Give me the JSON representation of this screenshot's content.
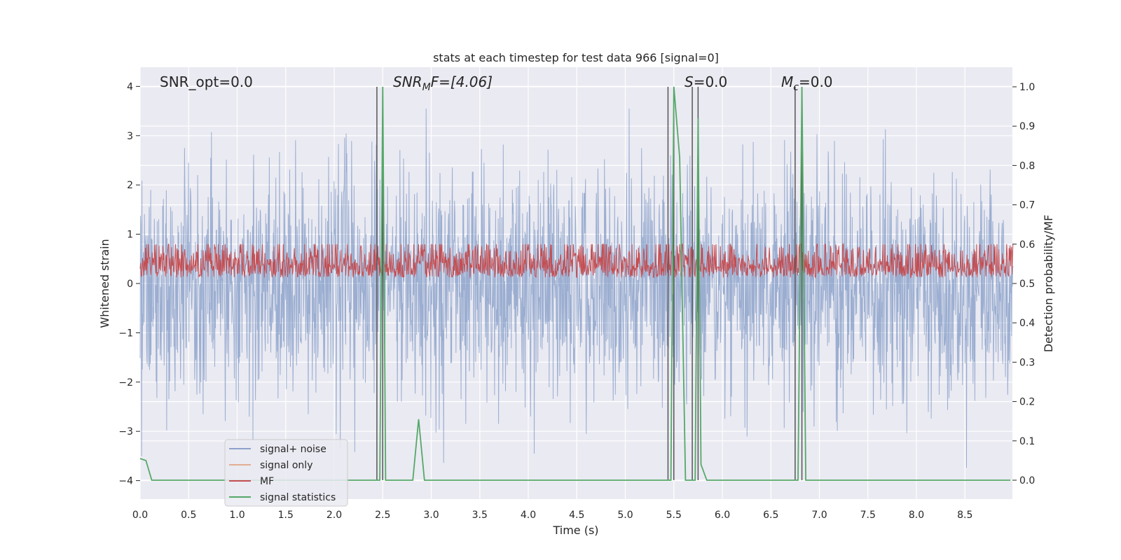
{
  "chart_data": {
    "type": "line",
    "title": "stats at each timestep for test data 966 [signal=0]",
    "xlabel": "Time (s)",
    "ylabel": "Whitened strain",
    "y2label": "Detection probability/MF",
    "xlim": [
      0.0,
      9.0
    ],
    "ylim": [
      -4.4,
      4.4
    ],
    "y2lim": [
      -0.05,
      1.05
    ],
    "xticks": [
      "0.0",
      "0.5",
      "1.0",
      "1.5",
      "2.0",
      "2.5",
      "3.0",
      "3.5",
      "4.0",
      "4.5",
      "5.0",
      "5.5",
      "6.0",
      "6.5",
      "7.0",
      "7.5",
      "8.0",
      "8.5"
    ],
    "yticks": [
      "4",
      "3",
      "2",
      "1",
      "0",
      "−1",
      "−2",
      "−3",
      "−4"
    ],
    "y2ticks": [
      "1.0",
      "0.9",
      "0.8",
      "0.7",
      "0.6",
      "0.5",
      "0.4",
      "0.3",
      "0.2",
      "0.1",
      "0.0"
    ],
    "grid": true,
    "legend_position": "lower-left",
    "annotations": {
      "snr_opt": "SNR_opt=0.0",
      "snr_mf_main": "SNR",
      "snr_mf_sub": "M",
      "snr_mf_rest": "F=[4.06]",
      "s_label": "S",
      "s_value": "=0.0",
      "mc_main": "M",
      "mc_sub": "c",
      "mc_value": "=0.0"
    },
    "colors": {
      "noise": "#4c72b0",
      "signal": "#dd8452",
      "mf": "#c44e52",
      "stats": "#55a868",
      "vline": "#555555",
      "background": "#eaeaf2"
    },
    "series": [
      {
        "name": "signal+ noise",
        "style": "dense noise, ±~1.8 typical, peaks to ~3.5"
      },
      {
        "name": "signal only",
        "values": []
      },
      {
        "name": "MF",
        "style": "dense noise, range ~0.02–0.95"
      },
      {
        "name": "signal statistics",
        "axis": "right",
        "x": [
          0.0,
          0.06,
          0.12,
          2.44,
          2.47,
          2.5,
          2.53,
          2.56,
          2.81,
          2.87,
          2.93,
          5.41,
          5.47,
          5.5,
          5.56,
          5.62,
          5.68,
          5.72,
          5.75,
          5.78,
          5.84,
          6.74,
          6.78,
          6.82,
          6.86,
          8.97
        ],
        "y": [
          0.055,
          0.05,
          0.0,
          0.0,
          0.0,
          1.0,
          0.0,
          0.0,
          0.0,
          0.155,
          0.0,
          0.0,
          0.0,
          1.0,
          0.82,
          0.0,
          0.0,
          0.0,
          0.92,
          0.04,
          0.0,
          0.0,
          0.0,
          1.0,
          0.0,
          0.0
        ]
      }
    ],
    "vlines_right_axis": [
      {
        "x": 2.44,
        "y_from": 0.0,
        "y_to": 1.0
      },
      {
        "x": 2.5,
        "y_from": 0.0,
        "y_to": 1.0
      },
      {
        "x": 5.44,
        "y_from": 0.0,
        "y_to": 1.0
      },
      {
        "x": 5.5,
        "y_from": 0.0,
        "y_to": 1.0
      },
      {
        "x": 5.69,
        "y_from": 0.0,
        "y_to": 1.0
      },
      {
        "x": 5.75,
        "y_from": 0.0,
        "y_to": 1.0
      },
      {
        "x": 6.75,
        "y_from": 0.0,
        "y_to": 1.0
      },
      {
        "x": 6.82,
        "y_from": 0.0,
        "y_to": 1.0
      }
    ]
  }
}
